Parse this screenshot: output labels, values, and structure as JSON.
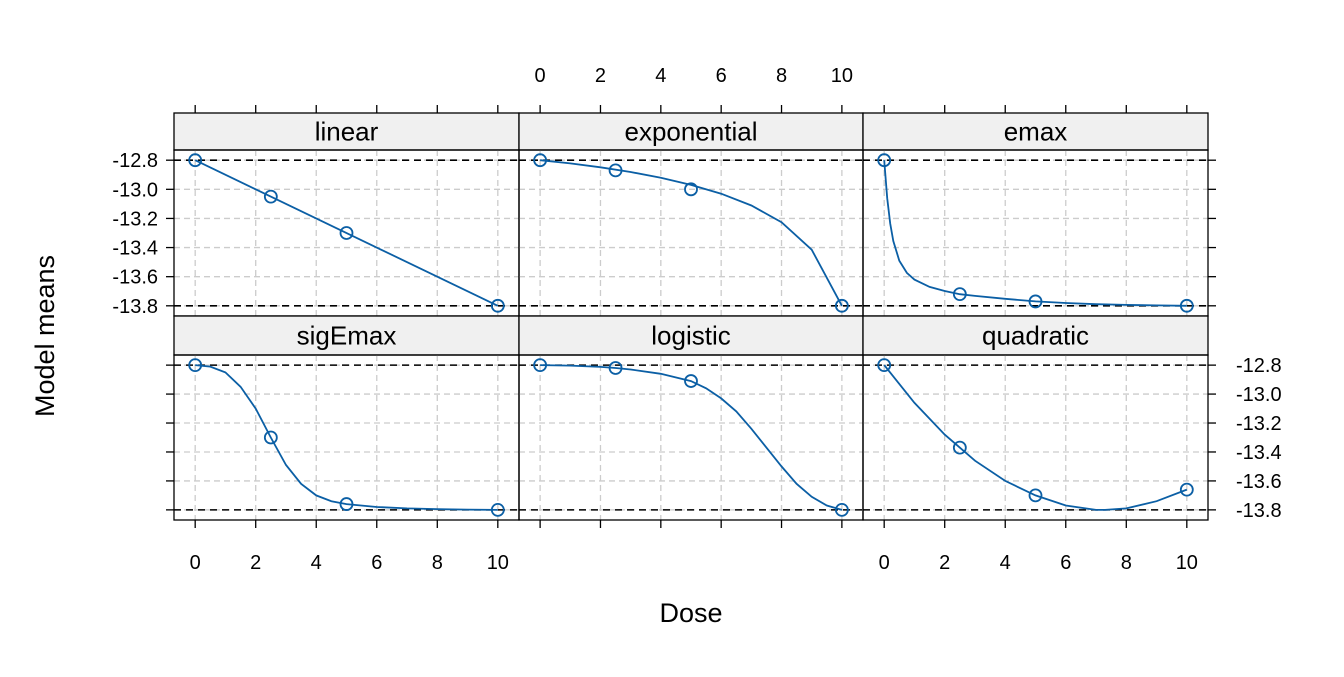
{
  "chart_data": {
    "type": "line",
    "layout": "trellis 3x2",
    "xlabel": "Dose",
    "ylabel": "Model means",
    "xlim": [
      -0.7,
      10.7
    ],
    "ylim": [
      -13.87,
      -12.73
    ],
    "x_ticks": [
      0,
      2,
      4,
      6,
      8,
      10
    ],
    "x_tick_labels": [
      "0",
      "2",
      "4",
      "6",
      "8",
      "10"
    ],
    "y_ticks": [
      -12.8,
      -13.0,
      -13.2,
      -13.4,
      -13.6,
      -13.8
    ],
    "y_tick_labels": [
      "-12.8",
      "-13.0",
      "-13.2",
      "-13.4",
      "-13.6",
      "-13.8"
    ],
    "reference_lines": [
      -12.8,
      -13.8
    ],
    "grid": true,
    "colors": {
      "line": "#0b5fa5",
      "point": "#0b5fa5",
      "strip_background": "#f0f0f0",
      "grid": "#cccccc",
      "reference": "#000000"
    },
    "panels": [
      {
        "name": "linear",
        "points": {
          "x": [
            0,
            2.5,
            5,
            10
          ],
          "y": [
            -12.8,
            -13.05,
            -13.3,
            -13.8
          ]
        },
        "curve": {
          "x": [
            0,
            10
          ],
          "y": [
            -12.8,
            -13.8
          ]
        }
      },
      {
        "name": "exponential",
        "points": {
          "x": [
            0,
            2.5,
            5,
            10
          ],
          "y": [
            -12.8,
            -12.87,
            -13.0,
            -13.8
          ]
        },
        "curve": {
          "x": [
            0,
            1,
            2,
            3,
            4,
            5,
            6,
            7,
            8,
            9,
            10
          ],
          "y": [
            -12.8,
            -12.822,
            -12.849,
            -12.881,
            -12.921,
            -12.97,
            -13.03,
            -13.111,
            -13.226,
            -13.415,
            -13.8
          ]
        }
      },
      {
        "name": "emax",
        "points": {
          "x": [
            0,
            2.5,
            5,
            10
          ],
          "y": [
            -12.8,
            -13.72,
            -13.77,
            -13.8
          ]
        },
        "curve": {
          "x": [
            0,
            0.1,
            0.2,
            0.3,
            0.5,
            0.75,
            1,
            1.5,
            2,
            2.5,
            3,
            4,
            5,
            6,
            7,
            8,
            9,
            10
          ],
          "y": [
            -12.8,
            -13.06,
            -13.235,
            -13.355,
            -13.49,
            -13.574,
            -13.62,
            -13.67,
            -13.698,
            -13.72,
            -13.732,
            -13.752,
            -13.77,
            -13.781,
            -13.789,
            -13.794,
            -13.797,
            -13.8
          ]
        }
      },
      {
        "name": "sigEmax",
        "points": {
          "x": [
            0,
            2.5,
            5,
            10
          ],
          "y": [
            -12.8,
            -13.3,
            -13.76,
            -13.8
          ]
        },
        "curve": {
          "x": [
            0,
            0.5,
            1,
            1.5,
            2,
            2.5,
            3,
            3.5,
            4,
            4.5,
            5,
            6,
            7,
            8,
            9,
            10
          ],
          "y": [
            -12.8,
            -12.81,
            -12.85,
            -12.95,
            -13.1,
            -13.3,
            -13.49,
            -13.62,
            -13.7,
            -13.74,
            -13.76,
            -13.78,
            -13.79,
            -13.795,
            -13.798,
            -13.8
          ]
        }
      },
      {
        "name": "logistic",
        "points": {
          "x": [
            0,
            2.5,
            5,
            10
          ],
          "y": [
            -12.8,
            -12.82,
            -12.91,
            -13.8
          ]
        },
        "curve": {
          "x": [
            0,
            1,
            2,
            2.5,
            3,
            4,
            5,
            5.5,
            6,
            6.5,
            7,
            7.5,
            8,
            8.5,
            9,
            9.5,
            10
          ],
          "y": [
            -12.8,
            -12.803,
            -12.812,
            -12.82,
            -12.83,
            -12.86,
            -12.91,
            -12.96,
            -13.03,
            -13.12,
            -13.24,
            -13.37,
            -13.5,
            -13.62,
            -13.71,
            -13.77,
            -13.8
          ]
        }
      },
      {
        "name": "quadratic",
        "points": {
          "x": [
            0,
            2.5,
            5,
            10
          ],
          "y": [
            -12.8,
            -13.37,
            -13.7,
            -13.66
          ]
        },
        "curve": {
          "x": [
            0,
            1,
            2,
            3,
            4,
            5,
            6,
            7,
            7.3,
            8,
            9,
            10
          ],
          "y": [
            -12.8,
            -13.06,
            -13.28,
            -13.46,
            -13.6,
            -13.7,
            -13.77,
            -13.8,
            -13.8,
            -13.79,
            -13.74,
            -13.66
          ]
        }
      }
    ]
  }
}
